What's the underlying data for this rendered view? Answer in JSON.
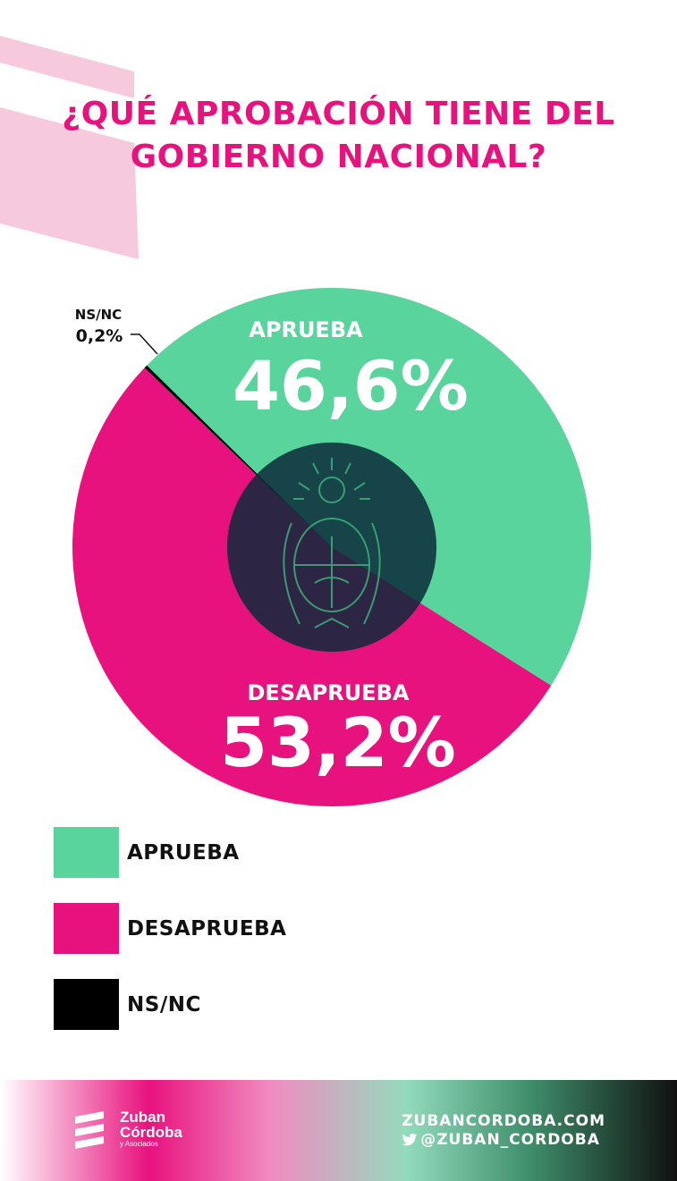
{
  "title": {
    "line1": "¿QUÉ APROBACIÓN TIENE DEL",
    "line2": "GOBIERNO NACIONAL?"
  },
  "colors": {
    "aprueba": "#59d49c",
    "desaprueba": "#e8127e",
    "nsnc": "#000000",
    "title": "#e8127e",
    "center": "#0a2a3a"
  },
  "chart_data": {
    "type": "pie",
    "categories": [
      "APRUEBA",
      "DESAPRUEBA",
      "NS/NC"
    ],
    "values": [
      46.6,
      53.2,
      0.2
    ],
    "value_labels": [
      "46,6%",
      "53,2%",
      "0,2%"
    ],
    "series_colors": [
      "#59d49c",
      "#e8127e",
      "#000000"
    ],
    "legend_position": "bottom-left"
  },
  "legend": [
    {
      "label": "APRUEBA",
      "color": "#59d49c"
    },
    {
      "label": "DESAPRUEBA",
      "color": "#e8127e"
    },
    {
      "label": "NS/NC",
      "color": "#000000"
    }
  ],
  "footer": {
    "logo_line1": "Zuban",
    "logo_line2": "Córdoba",
    "logo_line3": "y Asociados",
    "website": "ZUBANCORDOBA.COM",
    "twitter": "@ZUBAN_CORDOBA",
    "twitter_icon": "twitter-bird-icon"
  }
}
